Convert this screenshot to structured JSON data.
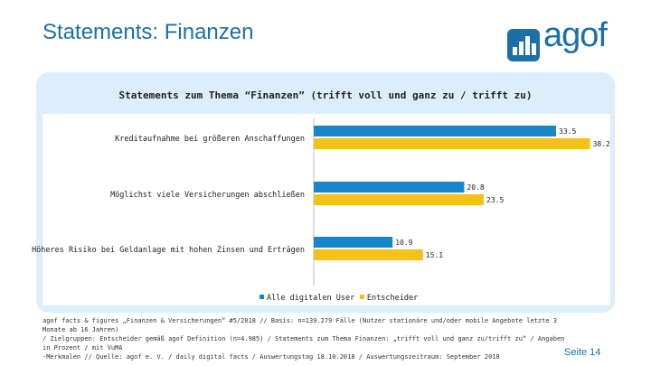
{
  "slide": {
    "title": "Statements: Finanzen",
    "logo_text": "agof",
    "page_number": "Seite 14",
    "footnote": [
      "agof facts & figures „Finanzen & Versicherungen“ #5/2018 // Basis: n=139.279 Fälle (Nutzer stationäre und/oder mobile Angebote letzte 3 Monate ab 16 Jahren)",
      "/ Zielgruppen: Entscheider gemäß agof Definition (n=4.985) / Statements zum Thema Finanzen: „trifft voll und ganz zu/trifft zu“ / Angaben in Prozent / mit VuMA",
      "-Merkmalen // Quelle: agof e. V. / daily digital facts / Auswertungstag 18.10.2018 / Auswertungszeitraum: September 2018"
    ]
  },
  "colors": {
    "brand": "#1d6fa8",
    "panel": "#dceefb",
    "series_1": "#1686c8",
    "series_2": "#f5c01c"
  },
  "chart_data": {
    "type": "bar",
    "orientation": "horizontal",
    "title": "Statements zum Thema “Finanzen” (trifft voll und ganz zu / trifft zu)",
    "categories": [
      "Kreditaufnahme bei größeren Anschaffungen",
      "Möglichst viele Versicherungen abschließen",
      "Höheres Risiko bei Geldanlage mit hohen Zinsen und Erträgen"
    ],
    "series": [
      {
        "name": "Alle digitalen User",
        "values": [
          33.5,
          20.8,
          10.9
        ],
        "labels": [
          "33.5",
          "20.8",
          "10.9"
        ],
        "color": "#1686c8"
      },
      {
        "name": "Entscheider",
        "values": [
          38.2,
          23.5,
          15.1
        ],
        "labels": [
          "38.2",
          "23.5",
          "15.1"
        ],
        "color": "#f5c01c"
      }
    ],
    "xlim": [
      0,
      40
    ],
    "grid": false,
    "legend": "bottom"
  }
}
